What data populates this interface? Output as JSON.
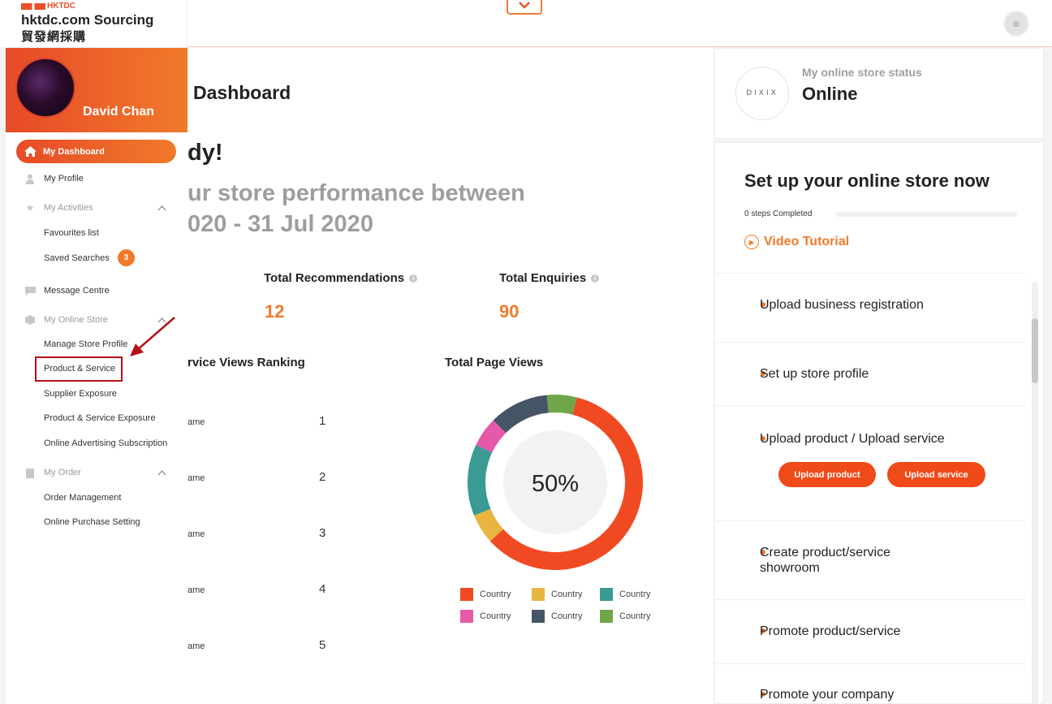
{
  "header": {
    "brand_tag": "HKTDC",
    "brand_name": "hktdc.com Sourcing",
    "brand_cn": "貿發網採購",
    "collapse_icon": "chevron-down-icon",
    "menu_icon": "menu-icon"
  },
  "sidebar": {
    "user_name": "David Chan",
    "active_item": "My Dashboard",
    "items": {
      "profile": "My Profile",
      "activities": "My Activities",
      "favourites": "Favourites list",
      "saved_searches": "Saved Searches",
      "saved_searches_count": "3",
      "message_centre": "Message Centre",
      "online_store": "My Online Store",
      "manage_store": "Manage Store Profile",
      "product_service": "Product & Service",
      "supplier_exposure": "Supplier Exposure",
      "product_exposure": "Product & Service Exposure",
      "advertising": "Online Advertising Subscription",
      "my_order": "My Order",
      "order_management": "Order Management",
      "purchase_setting": "Online Purchase Setting"
    }
  },
  "main": {
    "title": "Dashboard",
    "greeting": "dy!",
    "performance_line1": "ur store performance between",
    "performance_line2": "020 - 31 Jul 2020",
    "stats": {
      "recommendations_label": "Total Recommendations",
      "recommendations_value": "12",
      "enquiries_label": "Total Enquiries",
      "enquiries_value": "90"
    },
    "ranking_title": "rvice Views Ranking",
    "ranking": [
      {
        "name": "ame",
        "rank": "1"
      },
      {
        "name": "ame",
        "rank": "2"
      },
      {
        "name": "ame",
        "rank": "3"
      },
      {
        "name": "ame",
        "rank": "4"
      },
      {
        "name": "ame",
        "rank": "5"
      }
    ],
    "page_views_title": "Total Page Views",
    "donut_center": "50%"
  },
  "chart_data": {
    "type": "pie",
    "title": "Total Page Views",
    "center_label": "50%",
    "categories": [
      "Country",
      "Country",
      "Country",
      "Country",
      "Country",
      "Country"
    ],
    "values": [
      54,
      5,
      12,
      5,
      10,
      5
    ],
    "colors": [
      "#f04a22",
      "#e8b640",
      "#3a9a94",
      "#e658a8",
      "#465566",
      "#6fa64a"
    ],
    "legend": [
      {
        "label": "Country",
        "color": "#f04a22"
      },
      {
        "label": "Country",
        "color": "#e8b640"
      },
      {
        "label": "Country",
        "color": "#3a9a94"
      },
      {
        "label": "Country",
        "color": "#e658a8"
      },
      {
        "label": "Country",
        "color": "#465566"
      },
      {
        "label": "Country",
        "color": "#6fa64a"
      }
    ]
  },
  "right": {
    "status_label": "My online store status",
    "status_value": "Online",
    "store_logo_text": "DIXIX",
    "setup_title": "Set up your online store now",
    "steps_completed": "0 steps Completed",
    "steps_progress": 0,
    "video_tutorial": "Video Tutorial",
    "steps": {
      "s1": "Upload business registration",
      "s2": "Set up store profile",
      "s3": "Upload product / Upload service",
      "s4a": "Create product/service",
      "s4b": "showroom",
      "s5": "Promote product/service",
      "s6": "Promote your company"
    },
    "upload_product_btn": "Upload product",
    "upload_service_btn": "Upload service"
  },
  "colors": {
    "accent": "#f07a2a",
    "highlight": "#b3121a"
  }
}
